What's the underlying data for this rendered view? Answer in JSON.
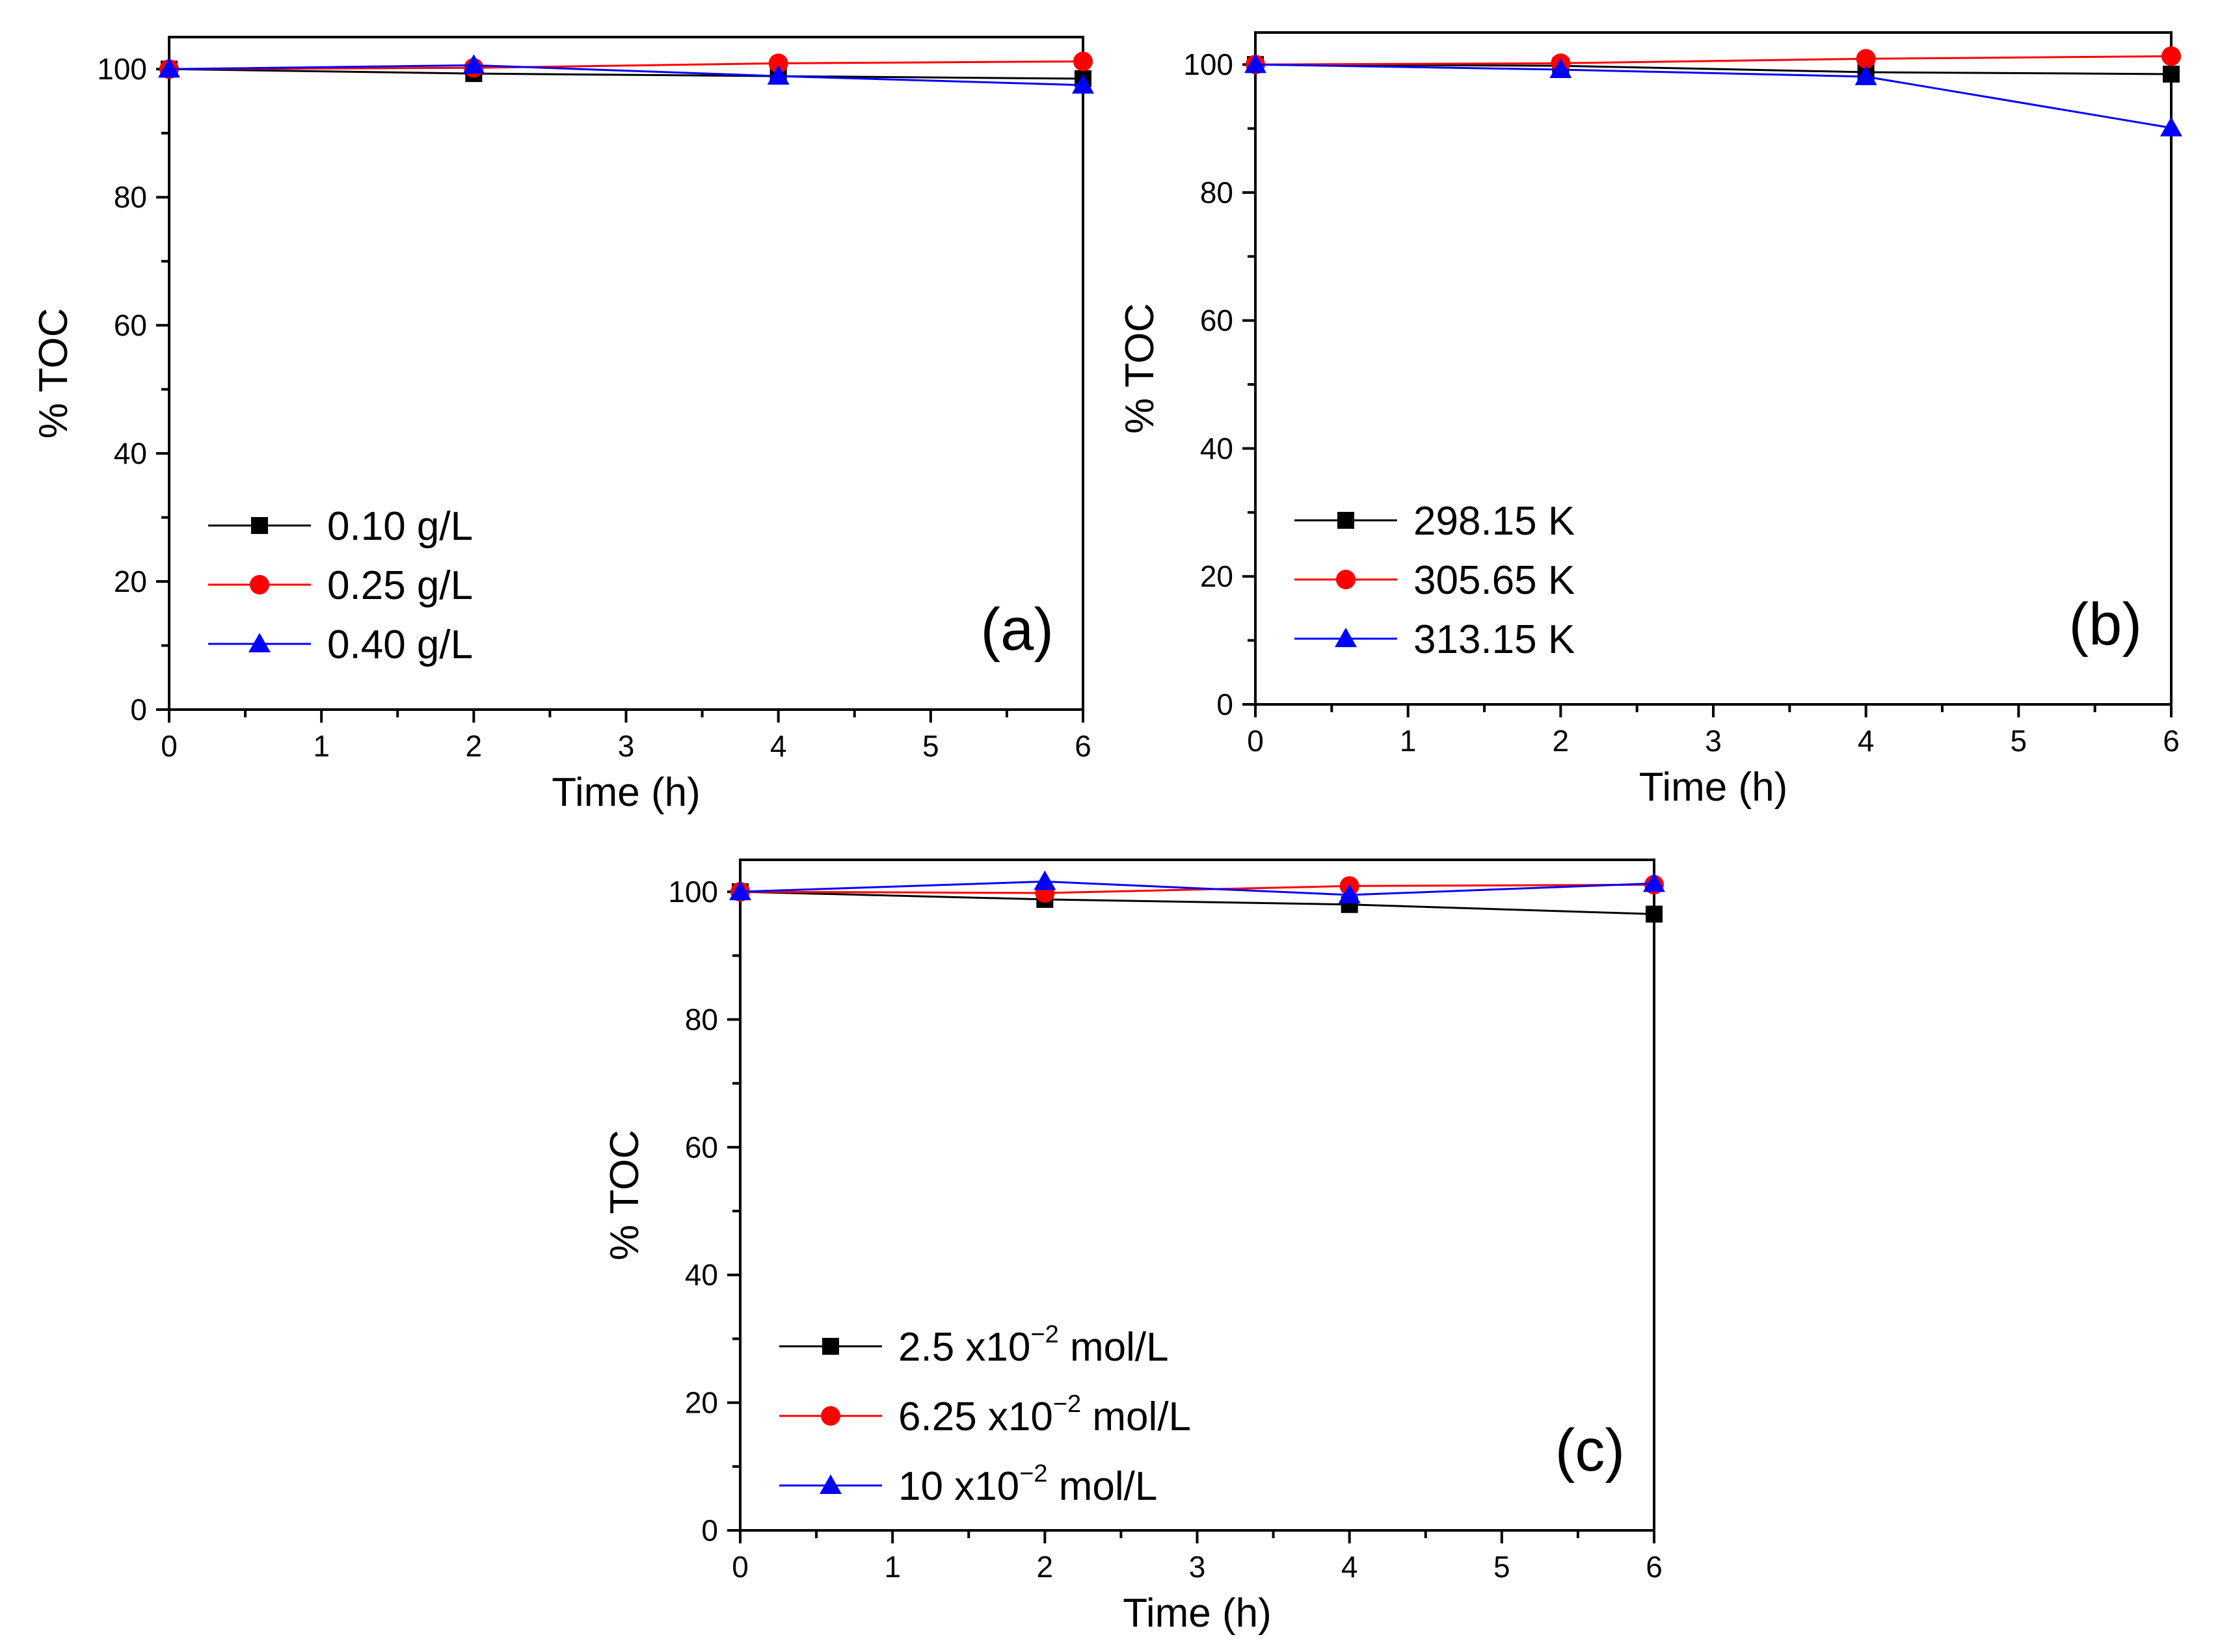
{
  "chart_data": [
    {
      "type": "line",
      "panel_label": "(a)",
      "xlabel": "Time (h)",
      "ylabel": "% TOC",
      "xlim": [
        0,
        6
      ],
      "ylim": [
        0,
        105
      ],
      "x_ticks": [
        "0",
        "1",
        "2",
        "3",
        "4",
        "5",
        "6"
      ],
      "y_ticks": [
        "0",
        "20",
        "40",
        "60",
        "80",
        "100"
      ],
      "legend_position": "bottom-left",
      "series": [
        {
          "name": "0.10 g/L",
          "label_parts": [
            "0.10 g/L"
          ],
          "color": "#000000",
          "marker": "square",
          "x": [
            0,
            2,
            4,
            6
          ],
          "values": [
            100,
            99.3,
            98.9,
            98.5
          ]
        },
        {
          "name": "0.25 g/L",
          "label_parts": [
            "0.25 g/L"
          ],
          "color": "#ff0000",
          "marker": "circle",
          "x": [
            0,
            2,
            4,
            6
          ],
          "values": [
            100,
            100.2,
            100.9,
            101.2
          ]
        },
        {
          "name": "0.40 g/L",
          "label_parts": [
            "0.40 g/L"
          ],
          "color": "#0000ff",
          "marker": "triangle",
          "x": [
            0,
            2,
            4,
            6
          ],
          "values": [
            100,
            100.6,
            98.9,
            97.5
          ]
        }
      ]
    },
    {
      "type": "line",
      "panel_label": "(b)",
      "xlabel": "Time (h)",
      "ylabel": "% TOC",
      "xlim": [
        0,
        6
      ],
      "ylim": [
        0,
        105
      ],
      "x_ticks": [
        "0",
        "1",
        "2",
        "3",
        "4",
        "5",
        "6"
      ],
      "y_ticks": [
        "0",
        "20",
        "40",
        "60",
        "80",
        "100"
      ],
      "legend_position": "bottom-left",
      "series": [
        {
          "name": "298.15 K",
          "label_parts": [
            "298.15 K"
          ],
          "color": "#000000",
          "marker": "square",
          "x": [
            0,
            2,
            4,
            6
          ],
          "values": [
            100,
            99.8,
            98.8,
            98.5
          ]
        },
        {
          "name": "305.65 K",
          "label_parts": [
            "305.65 K"
          ],
          "color": "#ff0000",
          "marker": "circle",
          "x": [
            0,
            2,
            4,
            6
          ],
          "values": [
            100,
            100.2,
            100.9,
            101.3
          ]
        },
        {
          "name": "313.15 K",
          "label_parts": [
            "313.15 K"
          ],
          "color": "#0000ff",
          "marker": "triangle",
          "x": [
            0,
            2,
            4,
            6
          ],
          "values": [
            100,
            99.2,
            98.1,
            90.1
          ]
        }
      ]
    },
    {
      "type": "line",
      "panel_label": "(c)",
      "xlabel": "Time (h)",
      "ylabel": "% TOC",
      "xlim": [
        0,
        6
      ],
      "ylim": [
        0,
        105
      ],
      "x_ticks": [
        "0",
        "1",
        "2",
        "3",
        "4",
        "5",
        "6"
      ],
      "y_ticks": [
        "0",
        "20",
        "40",
        "60",
        "80",
        "100"
      ],
      "legend_position": "bottom-left",
      "series": [
        {
          "name": "2.5 x10^-2 mol/L",
          "label_parts": [
            "2.5 x10",
            "−2",
            " mol/L"
          ],
          "color": "#000000",
          "marker": "square",
          "x": [
            0,
            2,
            4,
            6
          ],
          "values": [
            100,
            98.8,
            98.0,
            96.5
          ]
        },
        {
          "name": "6.25 x10^-2 mol/L",
          "label_parts": [
            "6.25 x10",
            "−2",
            " mol/L"
          ],
          "color": "#ff0000",
          "marker": "circle",
          "x": [
            0,
            2,
            4,
            6
          ],
          "values": [
            100,
            99.8,
            100.9,
            101.1
          ]
        },
        {
          "name": "10 x10^-2 mol/L",
          "label_parts": [
            "10 x10",
            "−2",
            " mol/L"
          ],
          "color": "#0000ff",
          "marker": "triangle",
          "x": [
            0,
            2,
            4,
            6
          ],
          "values": [
            100,
            101.6,
            99.5,
            101.3
          ]
        }
      ]
    }
  ]
}
